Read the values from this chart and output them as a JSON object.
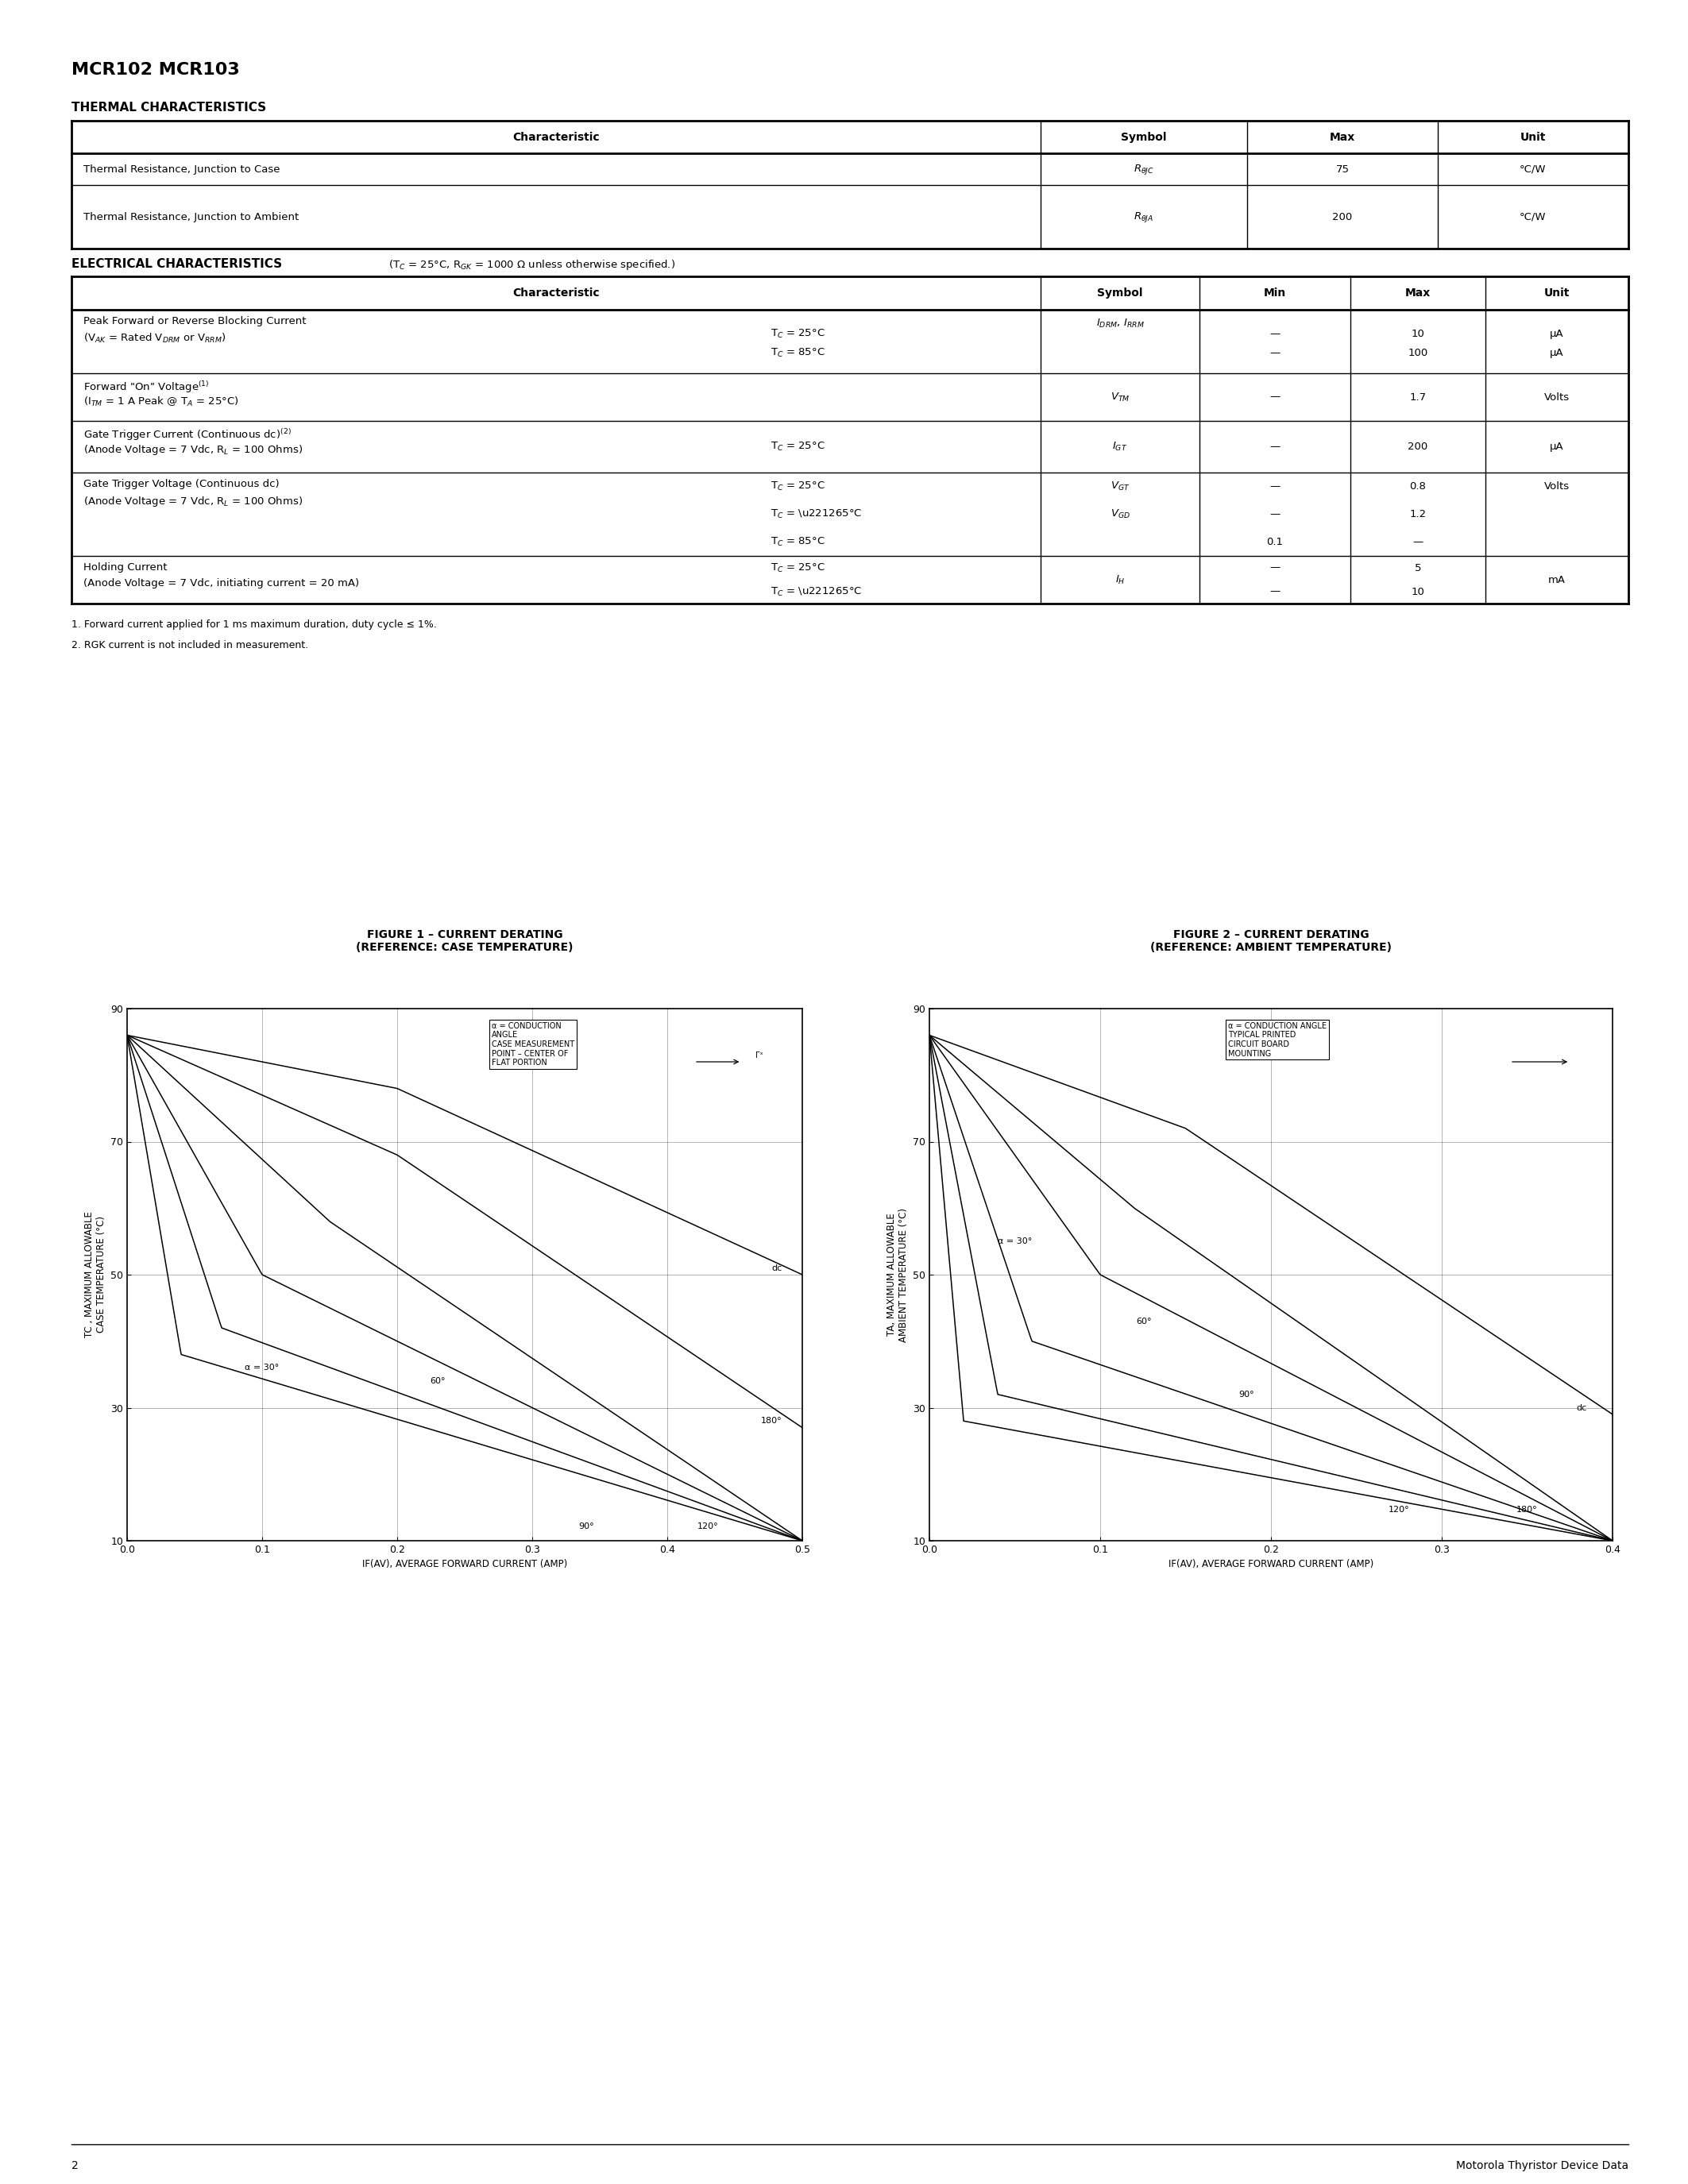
{
  "title": "MCR102 MCR103",
  "bg_color": "#ffffff",
  "text_color": "#000000",
  "page_number": "2",
  "footer_text": "Motorola Thyristor Device Data",
  "thermal_title": "THERMAL CHARACTERISTICS",
  "elec_title": "ELECTRICAL CHARACTERISTICS",
  "elec_subtitle": " (TC = 25°C, RGK = 1000 Ω unless otherwise specified.)",
  "footnote1": "1. Forward current applied for 1 ms maximum duration, duty cycle ≤ 1%.",
  "footnote2": "2. RGK current is not included in measurement.",
  "fig1_title": "FIGURE 1 – CURRENT DERATING\n(REFERENCE: CASE TEMPERATURE)",
  "fig2_title": "FIGURE 2 – CURRENT DERATING\n(REFERENCE: AMBIENT TEMPERATURE)",
  "fig1_xlabel": "IF(AV), AVERAGE FORWARD CURRENT (AMP)",
  "fig2_xlabel": "IF(AV), AVERAGE FORWARD CURRENT (AMP)",
  "fig1_ylabel": "TC , MAXIMUM ALLOWABLE\nCASE TEMPERATURE (°C)",
  "fig2_ylabel": "TA, MAXIMUM ALLOWABLE\nAMBIENT TEMPERATURE (°C)"
}
